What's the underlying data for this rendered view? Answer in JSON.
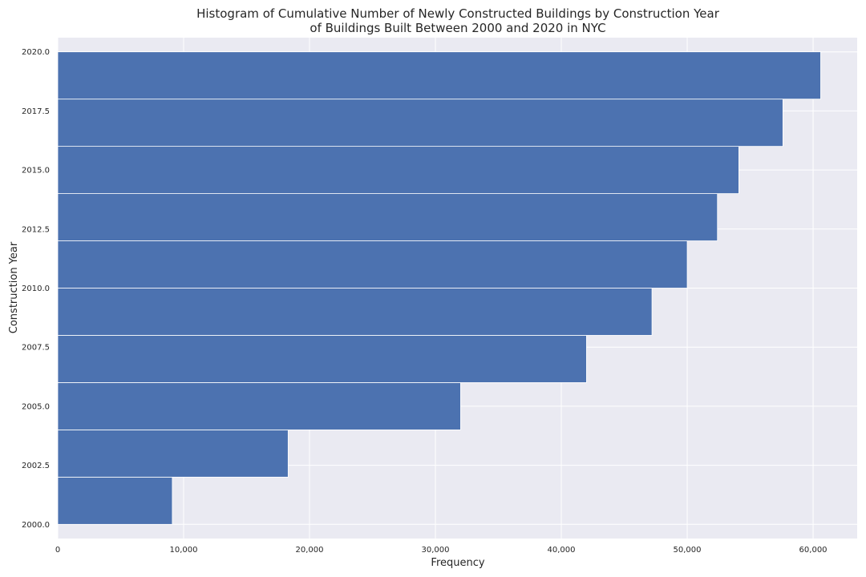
{
  "chart_data": {
    "type": "bar",
    "orientation": "horizontal",
    "title_line1": "Histogram of Cumulative Number of Newly Constructed Buildings by Construction Year",
    "title_line2": "of Buildings Built Between 2000 and 2020 in NYC",
    "xlabel": "Frequency",
    "ylabel": "Construction Year",
    "xlim": [
      0,
      63500
    ],
    "ylim": [
      1999.4,
      2020.6
    ],
    "x_ticks": [
      0,
      10000,
      20000,
      30000,
      40000,
      50000,
      60000
    ],
    "x_tick_labels": [
      "0",
      "10,000",
      "20,000",
      "30,000",
      "40,000",
      "50,000",
      "60,000"
    ],
    "y_ticks": [
      2000.0,
      2002.5,
      2005.0,
      2007.5,
      2010.0,
      2012.5,
      2015.0,
      2017.5,
      2020.0
    ],
    "y_tick_labels": [
      "2000.0",
      "2002.5",
      "2005.0",
      "2007.5",
      "2010.0",
      "2012.5",
      "2015.0",
      "2017.5",
      "2020.0"
    ],
    "bins": [
      {
        "from": 2000,
        "to": 2002,
        "value": 9100
      },
      {
        "from": 2002,
        "to": 2004,
        "value": 18300
      },
      {
        "from": 2004,
        "to": 2006,
        "value": 32000
      },
      {
        "from": 2006,
        "to": 2008,
        "value": 42000
      },
      {
        "from": 2008,
        "to": 2010,
        "value": 47200
      },
      {
        "from": 2010,
        "to": 2012,
        "value": 50000
      },
      {
        "from": 2012,
        "to": 2014,
        "value": 52400
      },
      {
        "from": 2014,
        "to": 2016,
        "value": 54100
      },
      {
        "from": 2016,
        "to": 2018,
        "value": 57600
      },
      {
        "from": 2018,
        "to": 2020,
        "value": 60600
      }
    ],
    "grid": true,
    "colors": {
      "bar": "#4c72b0",
      "background": "#eaeaf2",
      "grid": "#ffffff"
    }
  }
}
